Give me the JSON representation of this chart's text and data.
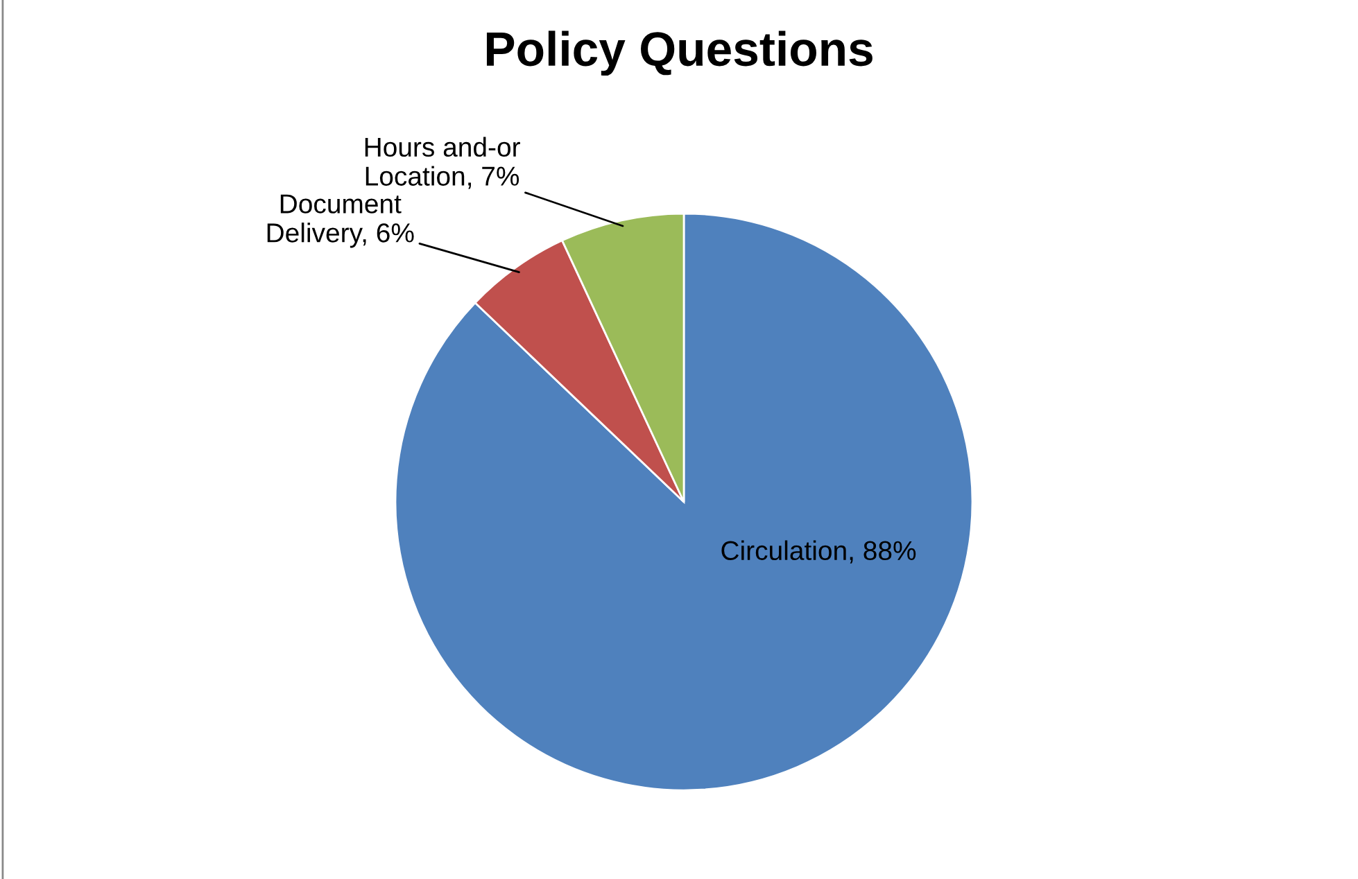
{
  "chart_data": {
    "type": "pie",
    "title": "Policy Questions",
    "categories": [
      "Circulation",
      "Document Delivery",
      "Hours and-or Location"
    ],
    "values": [
      88,
      6,
      7
    ],
    "colors": [
      "#4f81bd",
      "#c0504d",
      "#9bbb59"
    ],
    "value_labels": [
      "88%",
      "6%",
      "7%"
    ],
    "legend": false
  }
}
